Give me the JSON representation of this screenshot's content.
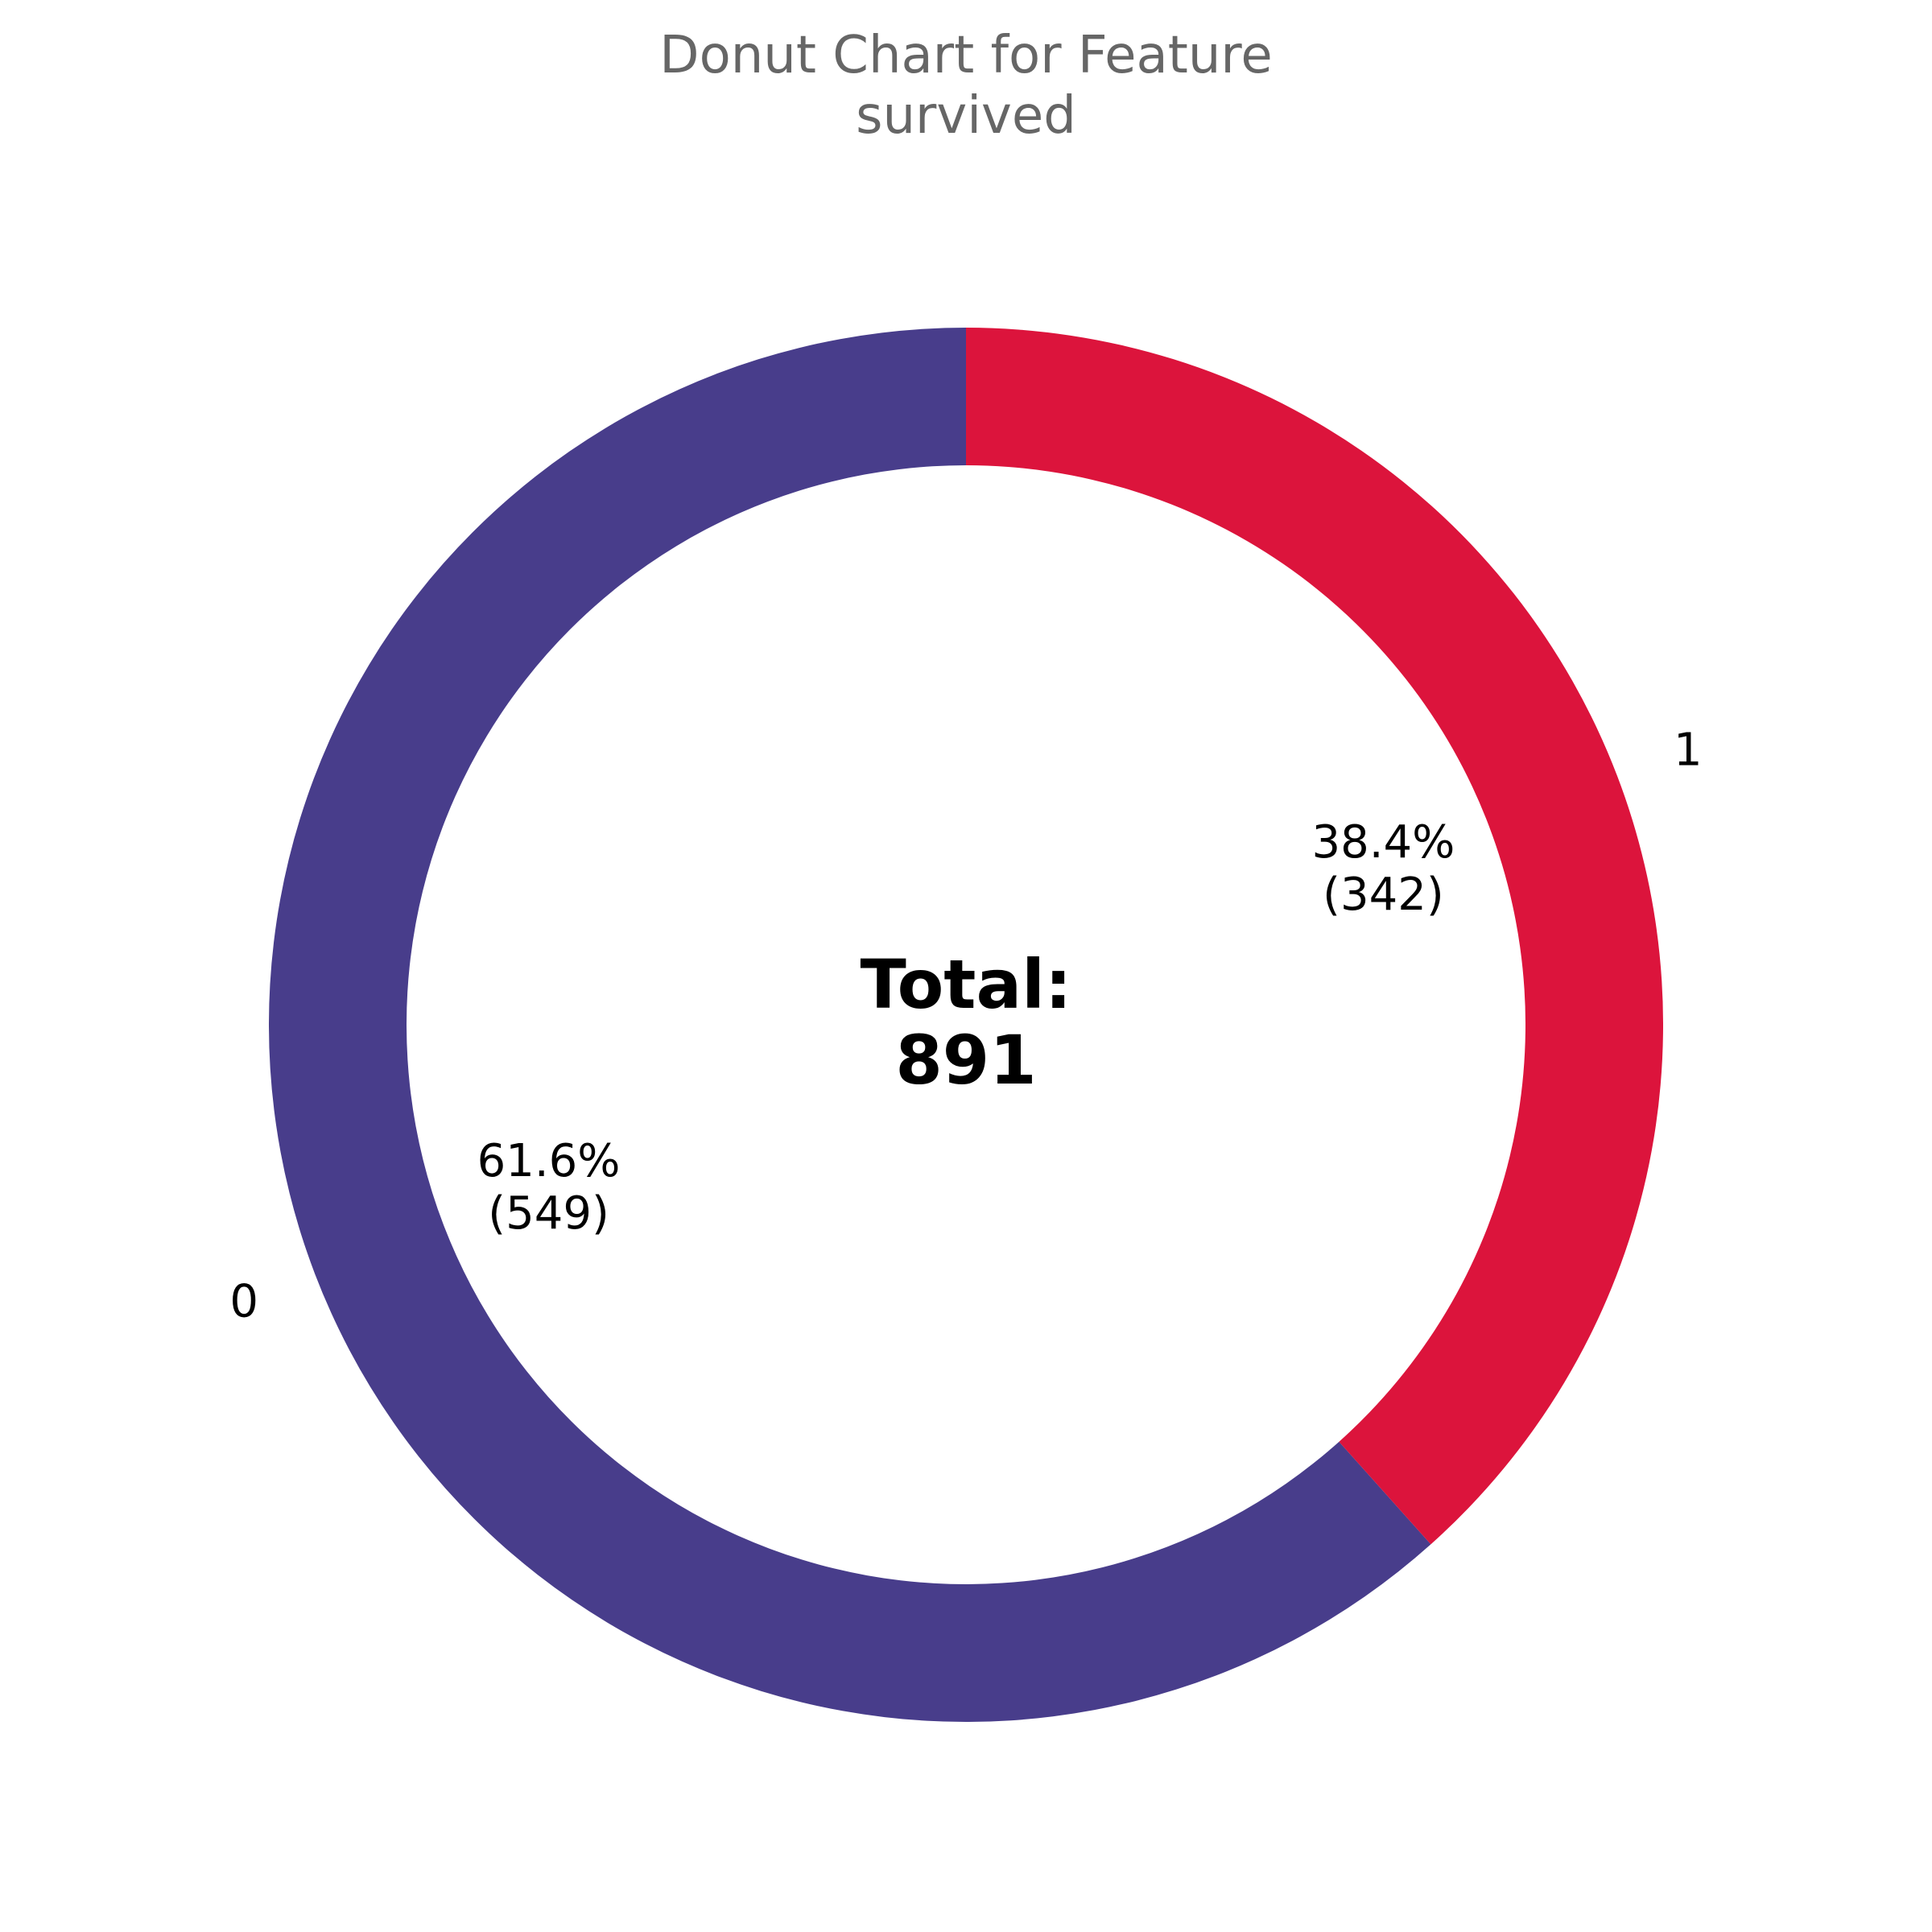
{
  "chart_data": {
    "type": "pie",
    "title_lines": [
      "Donut Chart for Feature",
      "survived"
    ],
    "categories": [
      "0",
      "1"
    ],
    "values": [
      549,
      342
    ],
    "percent_labels": [
      "61.6%",
      "38.4%"
    ],
    "count_labels": [
      "(549)",
      "(342)"
    ],
    "colors": [
      "#483D8B",
      "#DC143C"
    ],
    "center_label_lines": [
      "Total:",
      "891"
    ],
    "total": 891,
    "donut": true,
    "direction": "clockwise",
    "start": "top"
  }
}
